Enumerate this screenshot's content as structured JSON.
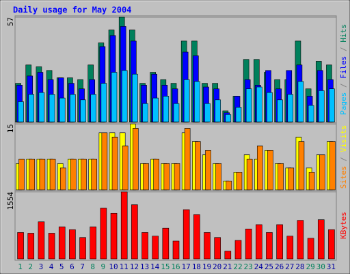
{
  "chart_data": {
    "type": "bar",
    "title": "Daily usage for May 2004",
    "categories": [
      "1",
      "2",
      "3",
      "4",
      "5",
      "6",
      "7",
      "8",
      "9",
      "10",
      "11",
      "12",
      "13",
      "14",
      "15",
      "16",
      "17",
      "18",
      "19",
      "20",
      "21",
      "22",
      "23",
      "24",
      "25",
      "26",
      "27",
      "28",
      "29",
      "30",
      "31"
    ],
    "weekend": [
      "1",
      "2",
      "8",
      "9",
      "15",
      "16",
      "22",
      "23",
      "29",
      "30"
    ],
    "label_color": "#0000a0",
    "weekend_color": "#00805c",
    "separator": "/",
    "panels": [
      {
        "ylim": [
          0,
          57
        ],
        "yticks": [
          57
        ],
        "series": [
          {
            "name": "Hits",
            "color": "#00805c",
            "values": [
              21,
              31,
              30,
              28,
              24,
              24,
              23,
              31,
              43,
              50,
              57,
              50,
              21,
              27,
              23,
              21,
              44,
              44,
              21,
              21,
              6,
              14,
              34,
              34,
              27,
              23,
              23,
              44,
              18,
              33,
              31
            ]
          },
          {
            "name": "Files",
            "color": "#0000ff",
            "values": [
              20,
              25,
              27,
              23,
              24,
              21,
              18,
              23,
              41,
              47,
              52,
              44,
              20,
              26,
              20,
              18,
              38,
              36,
              19,
              18,
              5,
              14,
              23,
              20,
              28,
              18,
              28,
              31,
              14,
              28,
              23
            ]
          },
          {
            "name": "Pages",
            "color": "#00c0ff",
            "values": [
              11,
              15,
              16,
              15,
              13,
              15,
              12,
              15,
              21,
              27,
              28,
              26,
              10,
              13,
              14,
              10,
              23,
              22,
              10,
              12,
              4,
              8,
              18,
              19,
              16,
              12,
              15,
              22,
              9,
              17,
              18
            ]
          }
        ]
      },
      {
        "ylim": [
          0,
          15
        ],
        "yticks": [
          15
        ],
        "series": [
          {
            "name": "Visits",
            "color": "#ffff00",
            "values": [
              6,
              7,
              7,
              7,
              6,
              7,
              7,
              7,
              13,
              13,
              13,
              15,
              6,
              7,
              6,
              6,
              13,
              11,
              8,
              6,
              2,
              4,
              8,
              7,
              9,
              6,
              5,
              12,
              5,
              8,
              11
            ]
          },
          {
            "name": "Sites",
            "color": "#ff8000",
            "values": [
              7,
              7,
              7,
              7,
              5,
              7,
              7,
              7,
              13,
              12,
              10,
              14,
              6,
              7,
              6,
              6,
              14,
              11,
              9,
              6,
              2,
              4,
              7,
              10,
              9,
              6,
              5,
              11,
              4,
              8,
              11
            ]
          }
        ]
      },
      {
        "ylim": [
          0,
          1554
        ],
        "yticks": [
          1554
        ],
        "series": [
          {
            "name": "KBytes",
            "color": "#ff0000",
            "values": [
              612,
              595,
              860,
              595,
              744,
              678,
              496,
              744,
              1174,
              1058,
              1554,
              1256,
              612,
              529,
              711,
              413,
              1141,
              1025,
              612,
              496,
              182,
              430,
              694,
              794,
              612,
              794,
              529,
              893,
              479,
              909,
              678
            ]
          }
        ]
      }
    ]
  }
}
